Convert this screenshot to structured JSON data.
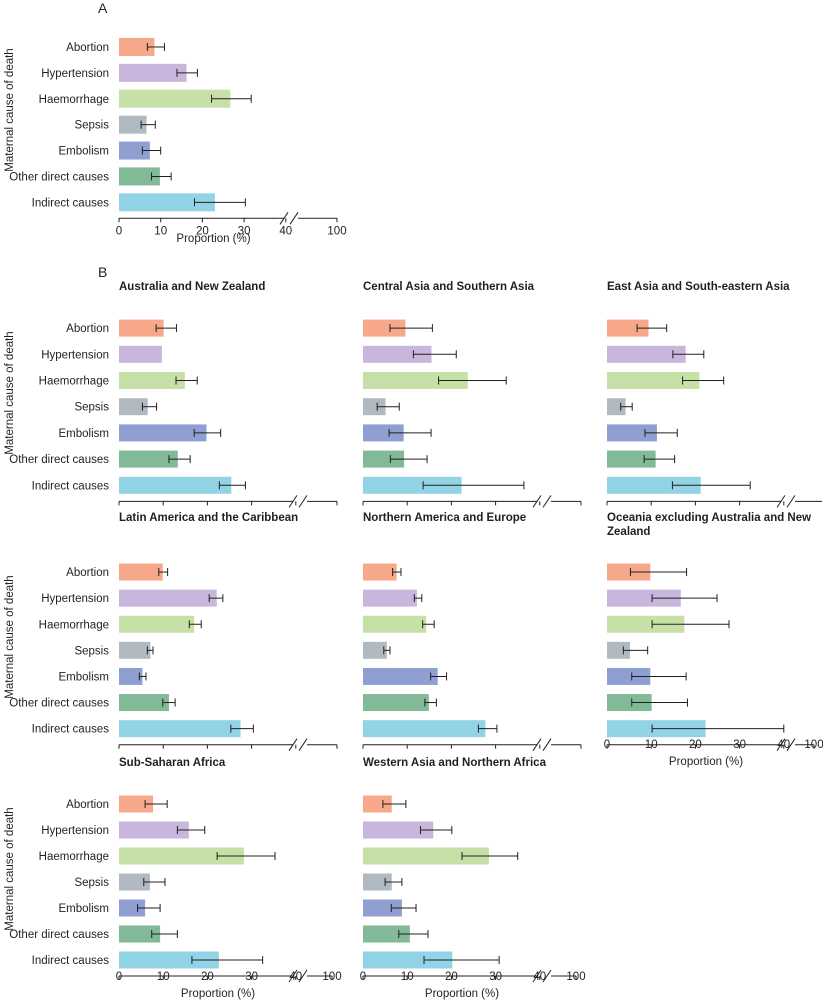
{
  "figure": {
    "panel_a_letter": "A",
    "panel_b_letter": "B",
    "y_axis_label": "Maternal cause of death",
    "x_axis_label": "Proportion (%)"
  },
  "colors": {
    "Abortion": "#f7a88a",
    "Hypertension": "#c9b6dd",
    "Haemorrhage": "#c6e0a8",
    "Sepsis": "#b0bac0",
    "Embolism": "#8f9fd2",
    "Other direct causes": "#82b997",
    "Indirect causes": "#92d3e6"
  },
  "chart_data": [
    {
      "id": "global",
      "type": "bar",
      "orientation": "horizontal",
      "title": "",
      "panel": "A",
      "xlabel": "Proportion (%)",
      "ylabel": "Maternal cause of death",
      "categories": [
        "Abortion",
        "Hypertension",
        "Haemorrhage",
        "Sepsis",
        "Embolism",
        "Other direct causes",
        "Indirect causes"
      ],
      "values": [
        8.5,
        16.2,
        26.7,
        6.6,
        7.4,
        9.8,
        23.0
      ],
      "ci_low": [
        6.8,
        13.9,
        22.2,
        5.3,
        5.6,
        7.8,
        18.1
      ],
      "ci_high": [
        10.9,
        18.8,
        31.7,
        8.7,
        10.0,
        12.5,
        30.3
      ],
      "xticks": [
        "0",
        "10",
        "20",
        "30",
        "40",
        "100"
      ],
      "xlim": [
        0,
        40
      ],
      "axis_break": [
        40,
        100
      ]
    },
    {
      "id": "anz",
      "type": "bar",
      "orientation": "horizontal",
      "title": "Australia and New Zealand",
      "categories": [
        "Abortion",
        "Hypertension",
        "Haemorrhage",
        "Sepsis",
        "Embolism",
        "Other direct causes",
        "Indirect causes"
      ],
      "values": [
        10.1,
        9.7,
        14.9,
        6.5,
        19.8,
        13.3,
        25.4
      ],
      "ci_low": [
        8.4,
        null,
        12.9,
        5.3,
        17.0,
        11.3,
        22.7
      ],
      "ci_high": [
        13.0,
        null,
        17.7,
        8.5,
        23.0,
        16.1,
        28.6
      ],
      "xticks": [
        "0",
        "10",
        "20",
        "30",
        "40",
        "100"
      ],
      "xlim": [
        0,
        40
      ],
      "axis_break": [
        40,
        100
      ],
      "show_xticks": false
    },
    {
      "id": "casa",
      "type": "bar",
      "orientation": "horizontal",
      "title": "Central Asia and Southern Asia",
      "categories": [
        "Abortion",
        "Hypertension",
        "Haemorrhage",
        "Sepsis",
        "Embolism",
        "Other direct causes",
        "Indirect causes"
      ],
      "values": [
        9.6,
        15.5,
        23.7,
        5.1,
        9.2,
        9.3,
        22.3
      ],
      "ci_low": [
        6.1,
        11.4,
        17.1,
        3.2,
        5.9,
        6.2,
        13.6
      ],
      "ci_high": [
        15.7,
        21.1,
        32.4,
        8.2,
        15.4,
        14.5,
        36.4
      ],
      "xticks": [
        "0",
        "10",
        "20",
        "30",
        "40",
        "100"
      ],
      "xlim": [
        0,
        40
      ],
      "axis_break": [
        40,
        100
      ],
      "show_xticks": false
    },
    {
      "id": "easea",
      "type": "bar",
      "orientation": "horizontal",
      "title": "East Asia and South-eastern Asia",
      "categories": [
        "Abortion",
        "Hypertension",
        "Haemorrhage",
        "Sepsis",
        "Embolism",
        "Other direct causes",
        "Indirect causes"
      ],
      "values": [
        9.4,
        17.8,
        20.9,
        4.2,
        11.3,
        11.0,
        21.2
      ],
      "ci_low": [
        6.8,
        14.9,
        17.1,
        3.1,
        8.6,
        8.4,
        14.8
      ],
      "ci_high": [
        13.5,
        21.9,
        26.4,
        5.7,
        15.9,
        15.3,
        32.4
      ],
      "xticks": [
        "0",
        "10",
        "20",
        "30",
        "40",
        "100"
      ],
      "xlim": [
        0,
        40
      ],
      "axis_break": [
        40,
        100
      ],
      "show_xticks": false
    },
    {
      "id": "lac",
      "type": "bar",
      "orientation": "horizontal",
      "title": "Latin America and the Caribbean",
      "categories": [
        "Abortion",
        "Hypertension",
        "Haemorrhage",
        "Sepsis",
        "Embolism",
        "Other direct causes",
        "Indirect causes"
      ],
      "values": [
        9.9,
        22.1,
        17.0,
        7.1,
        5.3,
        11.3,
        27.5
      ],
      "ci_low": [
        9.0,
        20.4,
        15.9,
        6.4,
        4.6,
        9.9,
        25.3
      ],
      "ci_high": [
        11.0,
        23.5,
        18.6,
        7.7,
        6.1,
        12.7,
        30.4
      ],
      "xticks": [
        "0",
        "10",
        "20",
        "30",
        "40",
        "100"
      ],
      "xlim": [
        0,
        40
      ],
      "axis_break": [
        40,
        100
      ],
      "show_xticks": false
    },
    {
      "id": "name",
      "type": "bar",
      "orientation": "horizontal",
      "title": "Northern America and Europe",
      "categories": [
        "Abortion",
        "Hypertension",
        "Haemorrhage",
        "Sepsis",
        "Embolism",
        "Other direct causes",
        "Indirect causes"
      ],
      "values": [
        7.6,
        12.2,
        14.3,
        5.4,
        16.9,
        14.9,
        27.7
      ],
      "ci_low": [
        6.7,
        11.6,
        13.5,
        4.7,
        15.3,
        14.0,
        26.1
      ],
      "ci_high": [
        8.6,
        13.3,
        16.1,
        6.1,
        18.9,
        16.6,
        30.3
      ],
      "xticks": [
        "0",
        "10",
        "20",
        "30",
        "40",
        "100"
      ],
      "xlim": [
        0,
        40
      ],
      "axis_break": [
        40,
        100
      ],
      "show_xticks": false
    },
    {
      "id": "oceania",
      "type": "bar",
      "orientation": "horizontal",
      "title": "Oceania excluding Australia and New Zealand",
      "categories": [
        "Abortion",
        "Hypertension",
        "Haemorrhage",
        "Sepsis",
        "Embolism",
        "Other direct causes",
        "Indirect causes"
      ],
      "values": [
        9.8,
        16.7,
        17.5,
        5.2,
        9.8,
        10.1,
        22.3
      ],
      "ci_low": [
        5.3,
        10.2,
        10.2,
        3.7,
        5.6,
        5.6,
        10.2
      ],
      "ci_high": [
        18.0,
        24.9,
        27.6,
        9.2,
        17.9,
        18.2,
        45.5
      ],
      "xticks": [
        "0",
        "10",
        "20",
        "30",
        "40",
        "100"
      ],
      "xlim": [
        0,
        40
      ],
      "axis_break": [
        40,
        100
      ],
      "show_xticks": true
    },
    {
      "id": "ssa",
      "type": "bar",
      "orientation": "horizontal",
      "title": "Sub-Saharan Africa",
      "categories": [
        "Abortion",
        "Hypertension",
        "Haemorrhage",
        "Sepsis",
        "Embolism",
        "Other direct causes",
        "Indirect causes"
      ],
      "values": [
        7.7,
        15.8,
        28.3,
        7.0,
        5.9,
        9.3,
        22.6
      ],
      "ci_low": [
        5.9,
        13.2,
        22.2,
        5.6,
        4.2,
        7.4,
        16.5
      ],
      "ci_high": [
        10.9,
        19.4,
        35.3,
        10.4,
        9.3,
        13.2,
        32.5
      ],
      "xticks": [
        "0",
        "10",
        "20",
        "30",
        "40",
        "100"
      ],
      "xlim": [
        0,
        40
      ],
      "axis_break": [
        40,
        100
      ],
      "show_xticks": true
    },
    {
      "id": "wana",
      "type": "bar",
      "orientation": "horizontal",
      "title": "Western Asia and Northern Africa",
      "categories": [
        "Abortion",
        "Hypertension",
        "Haemorrhage",
        "Sepsis",
        "Embolism",
        "Other direct causes",
        "Indirect causes"
      ],
      "values": [
        6.5,
        15.9,
        28.5,
        6.5,
        8.8,
        10.6,
        20.2
      ],
      "ci_low": [
        4.5,
        13.0,
        22.4,
        5.0,
        6.4,
        8.1,
        13.8
      ],
      "ci_high": [
        9.7,
        20.1,
        35.0,
        8.8,
        12.0,
        14.7,
        30.8
      ],
      "xticks": [
        "0",
        "10",
        "20",
        "30",
        "40",
        "100"
      ],
      "xlim": [
        0,
        40
      ],
      "axis_break": [
        40,
        100
      ],
      "show_xticks": true
    }
  ]
}
